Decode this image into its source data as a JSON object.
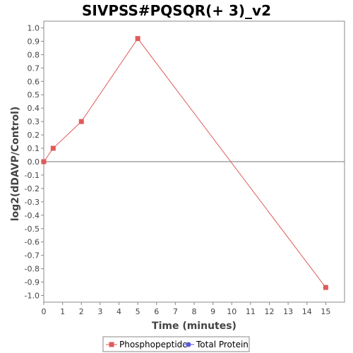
{
  "chart_data": {
    "type": "line",
    "title": "SIVPSS#PQSQR(+ 3)_v2",
    "xlabel": "Time (minutes)",
    "ylabel": "log2(dDAVP/Control)",
    "xlim": [
      0,
      16
    ],
    "ylim": [
      -1.05,
      1.05
    ],
    "x_ticks": [
      0,
      1,
      2,
      3,
      4,
      5,
      6,
      7,
      8,
      9,
      10,
      11,
      12,
      13,
      14,
      15
    ],
    "y_ticks": [
      1.0,
      0.9,
      0.8,
      0.7,
      0.6,
      0.5,
      0.4,
      0.3,
      0.2,
      0.1,
      0.0,
      -0.1,
      -0.2,
      -0.3,
      -0.4,
      -0.5,
      -0.6,
      -0.7,
      -0.8,
      -0.9,
      -1.0
    ],
    "zero_line": true,
    "grid": false,
    "legend_position": "bottom-center",
    "series": [
      {
        "name": "Phosphopeptide",
        "color": "#e05a5a",
        "marker": "square",
        "points": [
          {
            "x": 0,
            "y": 0.0
          },
          {
            "x": 0.5,
            "y": 0.1
          },
          {
            "x": 2,
            "y": 0.3
          },
          {
            "x": 5,
            "y": 0.92
          },
          {
            "x": 15,
            "y": -0.94
          }
        ]
      },
      {
        "name": "Total Protein",
        "color": "#5a5ae0",
        "marker": "circle",
        "points": []
      }
    ]
  }
}
